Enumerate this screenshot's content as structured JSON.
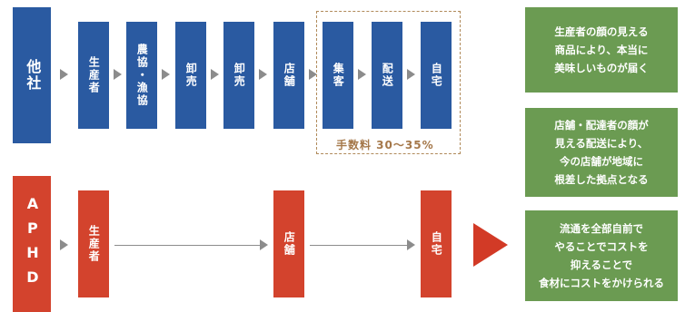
{
  "top_row": {
    "company": "他社",
    "stages": [
      "生産者",
      "農協・漁協",
      "卸売",
      "卸売",
      "店舗",
      "集客",
      "配送",
      "自宅"
    ],
    "fee_label": "手数料 30〜35%"
  },
  "bottom_row": {
    "company": "APHD",
    "stages": [
      "生産者",
      "店舗",
      "自宅"
    ]
  },
  "benefits": [
    "生産者の顔の見える\n商品により、本当に\n美味しいものが届く",
    "店舗・配達者の顔が\n見える配送により、\n今の店舗が地域に\n根差した拠点となる",
    "流通を全部自前で\nやることでコストを\n抑えることで\n食材にコストをかけられる"
  ],
  "colors": {
    "blue": "#2a5aa1",
    "red": "#d3432d",
    "green": "#6b9b52",
    "fee": "#a5784a"
  }
}
